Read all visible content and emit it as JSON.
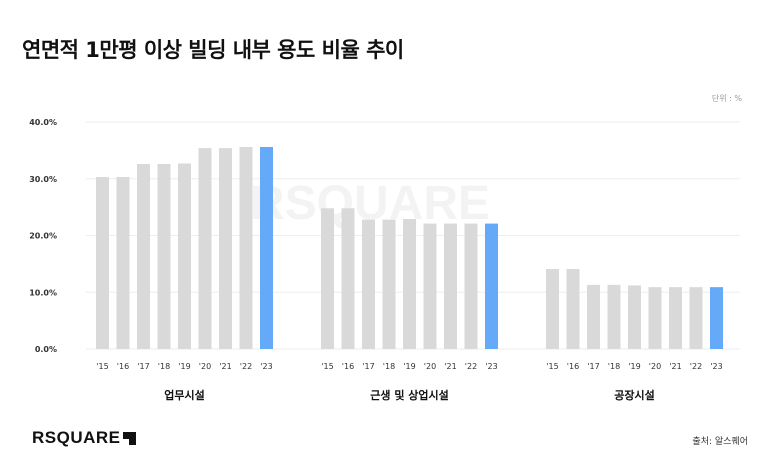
{
  "title": "연면적 1만평 이상 빌딩 내부 용도 비율 추이",
  "unit": "단위 : %",
  "source": "출처: 알스퀘어",
  "logo_text": "RSQUARE",
  "colors": {
    "bar": "#d9d9d9",
    "highlight": "#65aaf8",
    "grid": "#eeeeee"
  },
  "chart_data": {
    "type": "bar",
    "title": "연면적 1만평 이상 빌딩 내부 용도 비율 추이",
    "ylabel": "%",
    "ylim": [
      0,
      40
    ],
    "yticks": [
      "0.0%",
      "10.0%",
      "20.0%",
      "30.0%",
      "40.0%"
    ],
    "ytick_values": [
      0,
      10,
      20,
      30,
      40
    ],
    "grid": true,
    "categories": [
      "'15",
      "'16",
      "'17",
      "'18",
      "'19",
      "'20",
      "'21",
      "'22",
      "'23"
    ],
    "highlight_category": "'23",
    "groups": [
      {
        "name": "업무시설",
        "values": [
          30.3,
          30.3,
          32.6,
          32.6,
          32.7,
          35.4,
          35.4,
          35.6,
          35.6
        ]
      },
      {
        "name": "근생 및 상업시설",
        "values": [
          24.8,
          24.8,
          22.8,
          22.8,
          22.9,
          22.1,
          22.1,
          22.1,
          22.1
        ]
      },
      {
        "name": "공장시설",
        "values": [
          14.1,
          14.1,
          11.3,
          11.3,
          11.2,
          10.9,
          10.9,
          10.9,
          10.9
        ]
      }
    ]
  }
}
